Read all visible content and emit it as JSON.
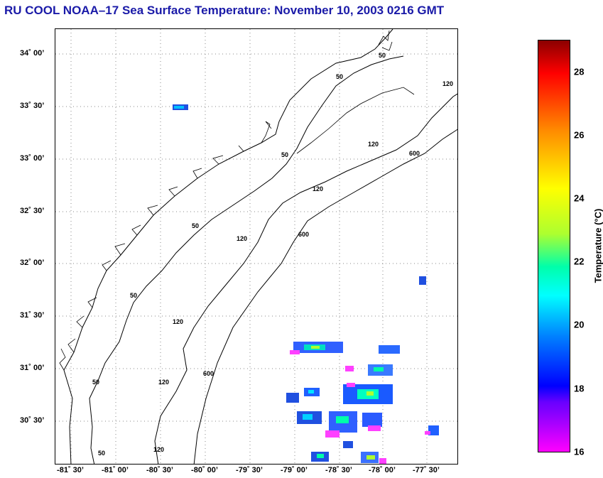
{
  "title": "RU COOL  NOAA–17  Sea Surface Temperature:  November 10, 2003 0216 GMT",
  "map": {
    "lat_labels": [
      "34˚ 00’",
      "33˚ 30’",
      "33˚ 00’",
      "32˚ 30’",
      "32˚ 00’",
      "31˚ 30’",
      "31˚ 00’",
      "30˚ 30’"
    ],
    "lon_labels": [
      "-81˚ 30’",
      "-81˚ 00’",
      "-80˚ 30’",
      "-80˚ 00’",
      "-79˚ 30’",
      "-79˚ 00’",
      "-78˚ 30’",
      "-78˚ 00’",
      "-77˚ 30’"
    ],
    "isobath_labels": [
      "50",
      "50",
      "50",
      "50",
      "50",
      "50",
      "50",
      "120",
      "120",
      "120",
      "120",
      "120",
      "120",
      "120",
      "600",
      "600",
      "600"
    ],
    "grid": "dotted",
    "land_color": "#ffffff"
  },
  "colorbar": {
    "label": "Temperature (°C)",
    "ticks": [
      "28",
      "26",
      "24",
      "22",
      "20",
      "18",
      "16"
    ],
    "min": 16,
    "max": 29,
    "colors": [
      "#8b0000",
      "#ff0000",
      "#ff8c00",
      "#ffff00",
      "#adff2f",
      "#00ffaa",
      "#00ffff",
      "#0080ff",
      "#0000ff",
      "#8000ff",
      "#ff00ff"
    ]
  }
}
